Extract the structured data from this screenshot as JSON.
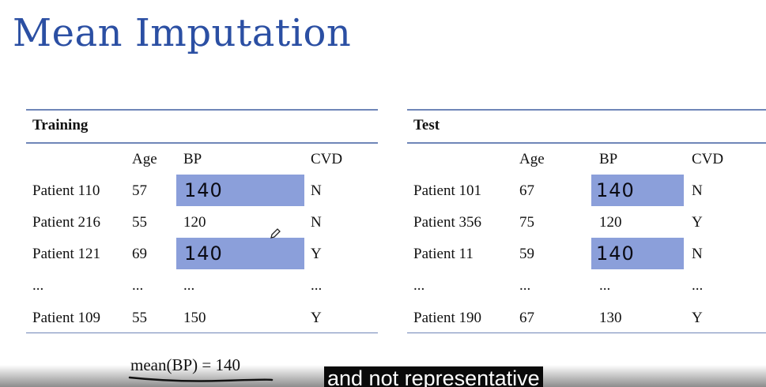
{
  "title": "Mean Imputation",
  "training": {
    "caption": "Training",
    "headers": [
      "",
      "Age",
      "BP",
      "CVD"
    ],
    "rows": [
      [
        "Patient 110",
        "57",
        "140",
        "N"
      ],
      [
        "Patient 216",
        "55",
        "120",
        "N"
      ],
      [
        "Patient 121",
        "69",
        "140",
        "Y"
      ],
      [
        "...",
        "...",
        "...",
        "..."
      ],
      [
        "Patient 109",
        "55",
        "150",
        "Y"
      ]
    ],
    "imputed_rows": [
      0,
      2
    ]
  },
  "test": {
    "caption": "Test",
    "headers": [
      "",
      "Age",
      "BP",
      "CVD"
    ],
    "rows": [
      [
        "Patient 101",
        "67",
        "140",
        "N"
      ],
      [
        "Patient 356",
        "75",
        "120",
        "Y"
      ],
      [
        "Patient 11",
        "59",
        "140",
        "N"
      ],
      [
        "...",
        "...",
        "...",
        "..."
      ],
      [
        "Patient 190",
        "67",
        "130",
        "Y"
      ]
    ],
    "imputed_rows": [
      0,
      2
    ]
  },
  "formula": "mean(BP) = 140",
  "caption_subtitle": "and not representative",
  "colors": {
    "title": "#2b4fa3",
    "highlight": "#8b9fda",
    "rule": "#6f86b8"
  },
  "icons": {
    "pen": "pencil-icon"
  }
}
